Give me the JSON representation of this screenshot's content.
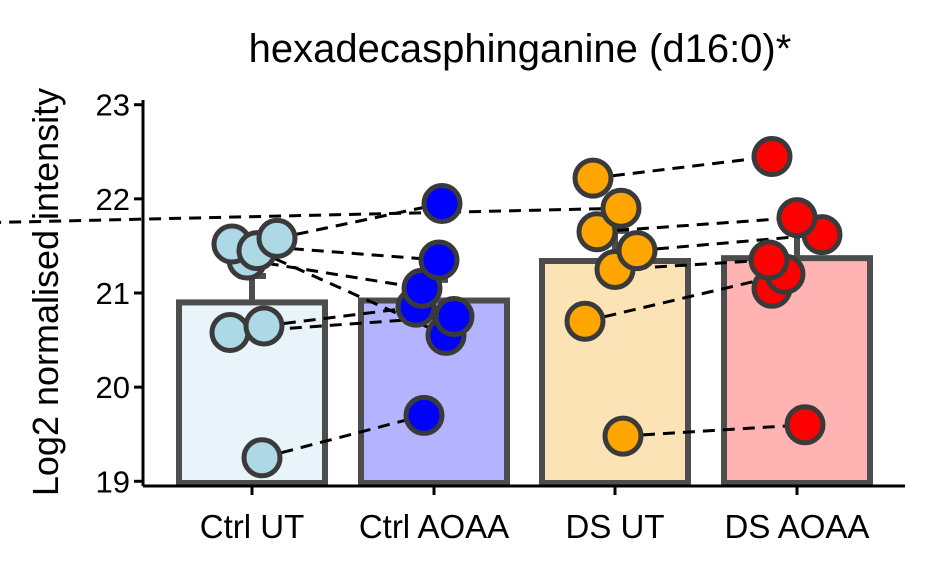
{
  "chart_data": {
    "type": "bar",
    "title": "hexadecasphinganine (d16:0)*",
    "xlabel": "",
    "ylabel": "Log2 normalised intensity",
    "ylim": [
      18.95,
      23.05
    ],
    "yticks": [
      19,
      20,
      21,
      22,
      23
    ],
    "categories": [
      "Ctrl UT",
      "Ctrl AOAA",
      "DS UT",
      "DS AOAA"
    ],
    "bar_values": [
      20.9,
      20.92,
      21.34,
      21.37
    ],
    "error_upper": [
      21.18,
      21.14,
      21.66,
      21.68
    ],
    "bar_fill_colors": [
      "#e8f3fa",
      "#b3b3ff",
      "#fce3b6",
      "#ffb3b3"
    ],
    "point_colors": [
      "#add8e6",
      "#0000ff",
      "#ffa500",
      "#ff0000"
    ],
    "points": [
      [
        19.25,
        20.58,
        20.65,
        21.35,
        21.52,
        21.45,
        21.58
      ],
      [
        19.7,
        20.55,
        20.75,
        20.85,
        21.05,
        21.35,
        21.95
      ],
      [
        19.48,
        20.7,
        21.25,
        21.45,
        21.65,
        21.9,
        22.22
      ],
      [
        19.6,
        21.05,
        21.2,
        21.35,
        21.62,
        21.8,
        22.45
      ]
    ],
    "pairs": [
      [
        [
          19.25,
          19.7
        ],
        [
          20.58,
          20.75
        ],
        [
          20.65,
          20.85
        ],
        [
          21.35,
          21.05
        ],
        [
          21.52,
          21.35
        ],
        [
          21.45,
          20.55
        ],
        [
          21.58,
          21.95
        ]
      ],
      [
        [
          19.48,
          19.6
        ],
        [
          20.7,
          21.2
        ],
        [
          21.25,
          21.35
        ],
        [
          21.45,
          21.62
        ],
        [
          21.65,
          21.8
        ],
        [
          21.9,
          21.75
        ],
        [
          22.22,
          22.45
        ]
      ]
    ]
  }
}
